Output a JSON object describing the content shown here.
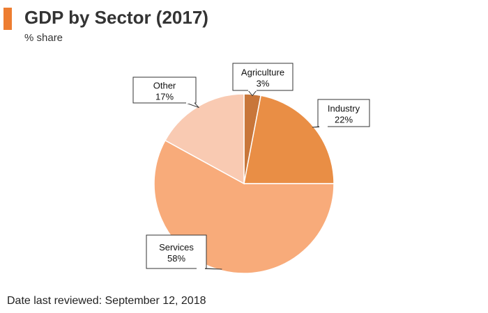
{
  "header": {
    "title": "GDP by Sector (2017)",
    "subtitle": "% share"
  },
  "footer": {
    "note": "Date last reviewed: September 12, 2018"
  },
  "colors": {
    "accent": "#ed7d31",
    "slice_border": "#ffffff",
    "callout_border": "#333333"
  },
  "chart_data": {
    "type": "pie",
    "title": "GDP by Sector (2017)",
    "subtitle": "% share",
    "unit": "%",
    "slices": [
      {
        "name": "Agriculture",
        "value": 3,
        "label": "3%",
        "color": "#c8763a"
      },
      {
        "name": "Industry",
        "value": 22,
        "label": "22%",
        "color": "#e98e45"
      },
      {
        "name": "Services",
        "value": 58,
        "label": "58%",
        "color": "#f8ab7a"
      },
      {
        "name": "Other",
        "value": 17,
        "label": "17%",
        "color": "#f9cab2"
      }
    ],
    "start_angle_deg": 0,
    "direction": "clockwise",
    "legend": "none",
    "data_labels": "callouts"
  }
}
